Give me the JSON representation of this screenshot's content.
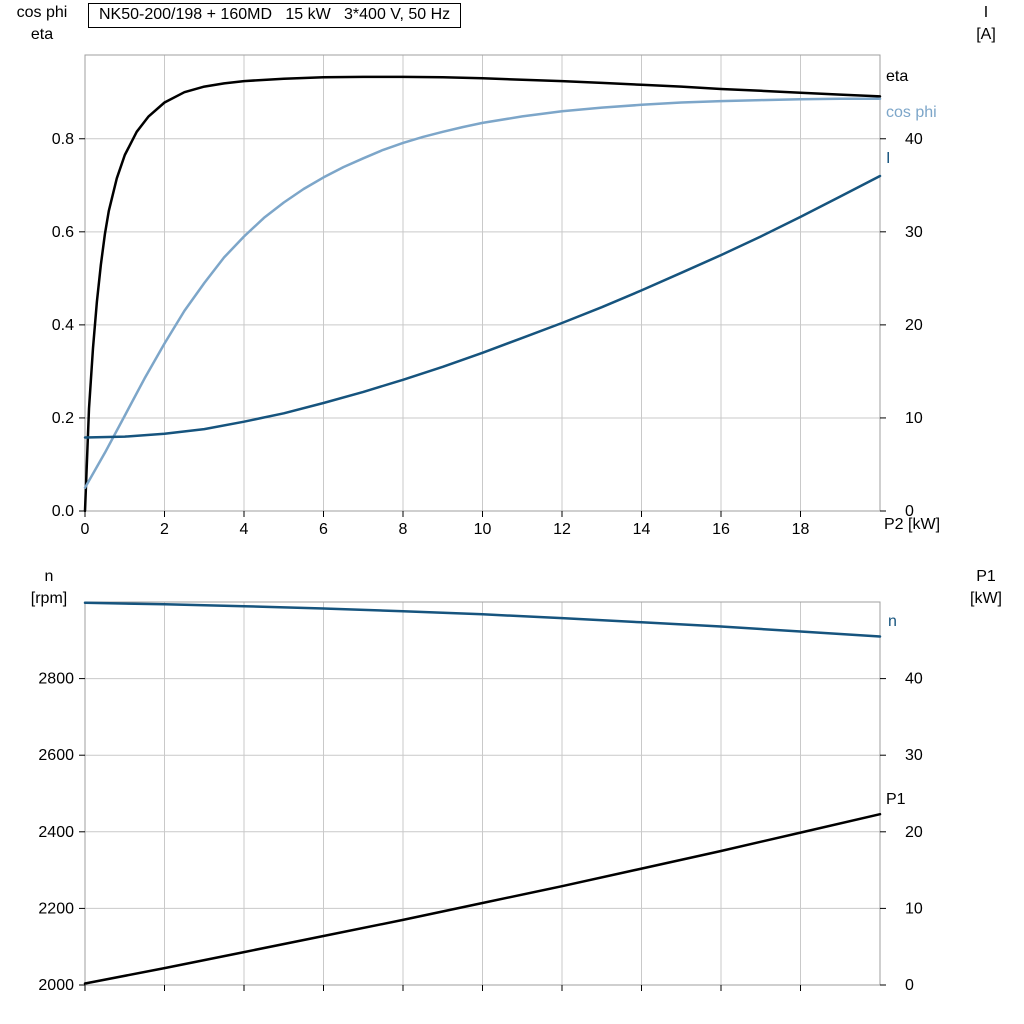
{
  "header": {
    "title_box": "NK50-200/198 + 160MD   15 kW   3*400 V, 50 Hz"
  },
  "colors": {
    "eta_black": "#000000",
    "light_blue": "#7da6c9",
    "dark_blue": "#16547e",
    "grid": "#c9c9c9",
    "frame": "#9f9f9f",
    "tick": "#000000",
    "text": "#000000"
  },
  "chart_data": [
    {
      "id": "top",
      "type": "line",
      "title": "NK50-200/198 + 160MD   15 kW   3*400 V, 50 Hz",
      "x_axis": {
        "label": "P2 [kW]",
        "min": 0,
        "max": 20,
        "ticks": [
          0,
          2,
          4,
          6,
          8,
          10,
          12,
          14,
          16,
          18
        ],
        "tick_labels": [
          "0",
          "2",
          "4",
          "6",
          "8",
          "10",
          "12",
          "14",
          "16",
          "18"
        ]
      },
      "y_left": {
        "title_lines": [
          "cos phi",
          "eta"
        ],
        "min": 0,
        "max": 0.98,
        "ticks": [
          0,
          0.2,
          0.4,
          0.6,
          0.8
        ],
        "tick_labels": [
          "0.0",
          "0.2",
          "0.4",
          "0.6",
          "0.8"
        ]
      },
      "y_right": {
        "title_lines": [
          "I",
          "[A]"
        ],
        "min": 0,
        "max": 49,
        "ticks": [
          0,
          10,
          20,
          30,
          40
        ],
        "tick_labels": [
          "0",
          "10",
          "20",
          "30",
          "40"
        ]
      },
      "series": [
        {
          "name": "eta",
          "axis": "left",
          "color_key": "eta_black",
          "points": [
            [
              0,
              0
            ],
            [
              0.1,
              0.22
            ],
            [
              0.2,
              0.35
            ],
            [
              0.3,
              0.45
            ],
            [
              0.4,
              0.53
            ],
            [
              0.5,
              0.595
            ],
            [
              0.6,
              0.645
            ],
            [
              0.8,
              0.715
            ],
            [
              1,
              0.765
            ],
            [
              1.3,
              0.815
            ],
            [
              1.6,
              0.848
            ],
            [
              2,
              0.878
            ],
            [
              2.5,
              0.9
            ],
            [
              3,
              0.912
            ],
            [
              3.5,
              0.919
            ],
            [
              4,
              0.924
            ],
            [
              5,
              0.929
            ],
            [
              6,
              0.932
            ],
            [
              7,
              0.933
            ],
            [
              8,
              0.933
            ],
            [
              9,
              0.932
            ],
            [
              10,
              0.93
            ],
            [
              11,
              0.927
            ],
            [
              12,
              0.924
            ],
            [
              13,
              0.92
            ],
            [
              14,
              0.916
            ],
            [
              15,
              0.912
            ],
            [
              16,
              0.907
            ],
            [
              17,
              0.903
            ],
            [
              18,
              0.899
            ],
            [
              19,
              0.895
            ],
            [
              20,
              0.891
            ]
          ]
        },
        {
          "name": "cos phi",
          "axis": "left",
          "color_key": "light_blue",
          "points": [
            [
              0,
              0.05
            ],
            [
              0.5,
              0.125
            ],
            [
              1,
              0.205
            ],
            [
              1.5,
              0.285
            ],
            [
              2,
              0.36
            ],
            [
              2.5,
              0.43
            ],
            [
              3,
              0.49
            ],
            [
              3.5,
              0.545
            ],
            [
              4,
              0.59
            ],
            [
              4.5,
              0.63
            ],
            [
              5,
              0.663
            ],
            [
              5.5,
              0.692
            ],
            [
              6,
              0.717
            ],
            [
              6.5,
              0.739
            ],
            [
              7,
              0.758
            ],
            [
              7.5,
              0.776
            ],
            [
              8,
              0.791
            ],
            [
              8.5,
              0.804
            ],
            [
              9,
              0.815
            ],
            [
              9.5,
              0.825
            ],
            [
              10,
              0.834
            ],
            [
              11,
              0.848
            ],
            [
              12,
              0.859
            ],
            [
              13,
              0.867
            ],
            [
              14,
              0.873
            ],
            [
              15,
              0.878
            ],
            [
              16,
              0.881
            ],
            [
              17,
              0.883
            ],
            [
              18,
              0.885
            ],
            [
              19,
              0.886
            ],
            [
              20,
              0.886
            ]
          ]
        },
        {
          "name": "I",
          "axis": "right",
          "color_key": "dark_blue",
          "points": [
            [
              0,
              7.9
            ],
            [
              1,
              8.0
            ],
            [
              2,
              8.3
            ],
            [
              3,
              8.8
            ],
            [
              4,
              9.6
            ],
            [
              5,
              10.5
            ],
            [
              6,
              11.6
            ],
            [
              7,
              12.8
            ],
            [
              8,
              14.1
            ],
            [
              9,
              15.5
            ],
            [
              10,
              17.0
            ],
            [
              11,
              18.6
            ],
            [
              12,
              20.2
            ],
            [
              13,
              21.9
            ],
            [
              14,
              23.7
            ],
            [
              15,
              25.6
            ],
            [
              16,
              27.5
            ],
            [
              17,
              29.5
            ],
            [
              18,
              31.6
            ],
            [
              19,
              33.8
            ],
            [
              20,
              36.0
            ]
          ]
        }
      ]
    },
    {
      "id": "bottom",
      "type": "line",
      "title": "",
      "x_axis": {
        "label": "",
        "min": 0,
        "max": 20,
        "ticks": [
          0,
          2,
          4,
          6,
          8,
          10,
          12,
          14,
          16,
          18
        ],
        "tick_labels": []
      },
      "y_left": {
        "title_lines": [
          "n",
          "[rpm]"
        ],
        "min": 2000,
        "max": 3000,
        "ticks": [
          2000,
          2200,
          2400,
          2600,
          2800
        ],
        "tick_labels": [
          "2000",
          "2200",
          "2400",
          "2600",
          "2800"
        ]
      },
      "y_right": {
        "title_lines": [
          "P1",
          "[kW]"
        ],
        "min": 0,
        "max": 50,
        "ticks": [
          0,
          10,
          20,
          30,
          40
        ],
        "tick_labels": [
          "0",
          "10",
          "20",
          "30",
          "40"
        ]
      },
      "series": [
        {
          "name": "n",
          "axis": "left",
          "color_key": "dark_blue",
          "points": [
            [
              0,
              2998
            ],
            [
              2,
              2994
            ],
            [
              4,
              2989
            ],
            [
              6,
              2983
            ],
            [
              8,
              2976
            ],
            [
              10,
              2968
            ],
            [
              12,
              2958
            ],
            [
              14,
              2947
            ],
            [
              16,
              2936
            ],
            [
              18,
              2923
            ],
            [
              20,
              2910
            ]
          ]
        },
        {
          "name": "P1",
          "axis": "right",
          "color_key": "eta_black",
          "points": [
            [
              0,
              0.2
            ],
            [
              2,
              2.2
            ],
            [
              4,
              4.3
            ],
            [
              6,
              6.4
            ],
            [
              8,
              8.5
            ],
            [
              10,
              10.7
            ],
            [
              12,
              12.9
            ],
            [
              14,
              15.2
            ],
            [
              16,
              17.5
            ],
            [
              18,
              19.9
            ],
            [
              20,
              22.3
            ]
          ]
        }
      ]
    }
  ]
}
